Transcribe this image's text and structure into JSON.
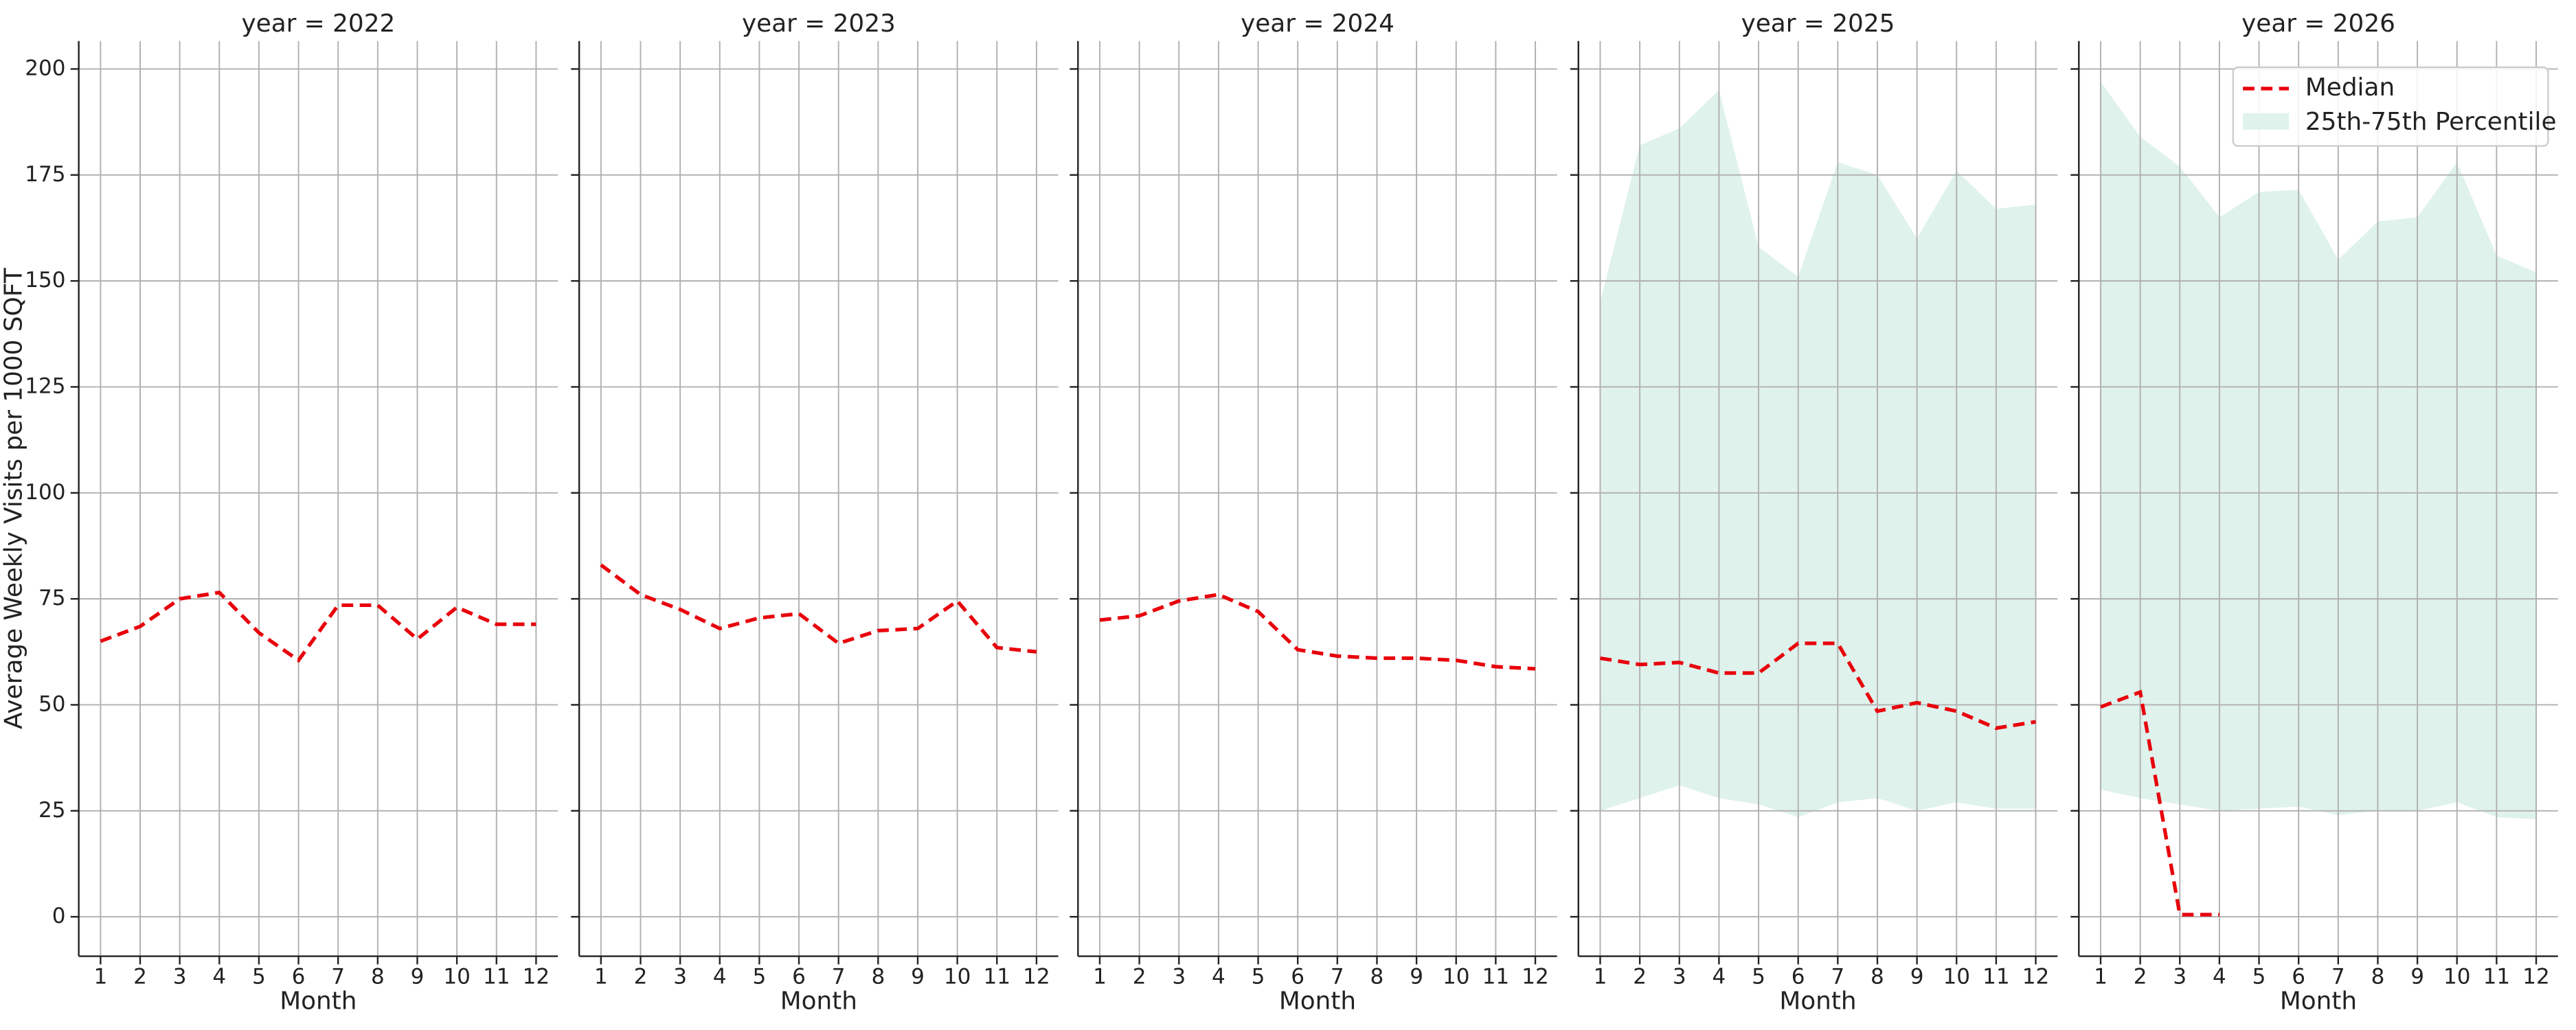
{
  "chart_data": [
    {
      "type": "line",
      "title": "year = 2022",
      "xlabel": "Month",
      "ylabel": "Average Weekly Visits per 1000 SQFT",
      "x": [
        1,
        2,
        3,
        4,
        5,
        6,
        7,
        8,
        9,
        10,
        11,
        12
      ],
      "xlim": [
        0.45,
        12.55
      ],
      "xticks": [
        1,
        2,
        3,
        4,
        5,
        6,
        7,
        8,
        9,
        10,
        11,
        12
      ],
      "ylim": [
        -9.3,
        206.6
      ],
      "yticks": [
        0,
        25,
        50,
        75,
        100,
        125,
        150,
        175,
        200
      ],
      "grid": true,
      "series": [
        {
          "name": "Median",
          "color": "#e8000b",
          "values": [
            65,
            68.5,
            75,
            76.5,
            67,
            60.5,
            73.5,
            73.5,
            65.5,
            73,
            69,
            69
          ]
        }
      ]
    },
    {
      "type": "line",
      "title": "year = 2023",
      "xlabel": "Month",
      "x": [
        1,
        2,
        3,
        4,
        5,
        6,
        7,
        8,
        9,
        10,
        11,
        12
      ],
      "xlim": [
        0.45,
        12.55
      ],
      "xticks": [
        1,
        2,
        3,
        4,
        5,
        6,
        7,
        8,
        9,
        10,
        11,
        12
      ],
      "grid": true,
      "series": [
        {
          "name": "Median",
          "color": "#e8000b",
          "values": [
            83,
            76,
            72.5,
            68,
            70.5,
            71.5,
            64.5,
            67.5,
            68,
            74.5,
            63.5,
            62.5
          ]
        }
      ]
    },
    {
      "type": "line",
      "title": "year = 2024",
      "xlabel": "Month",
      "x": [
        1,
        2,
        3,
        4,
        5,
        6,
        7,
        8,
        9,
        10,
        11,
        12
      ],
      "xlim": [
        0.45,
        12.55
      ],
      "xticks": [
        1,
        2,
        3,
        4,
        5,
        6,
        7,
        8,
        9,
        10,
        11,
        12
      ],
      "grid": true,
      "series": [
        {
          "name": "Median",
          "color": "#e8000b",
          "values": [
            70,
            71,
            74.5,
            76,
            72,
            63,
            61.5,
            61,
            61,
            60.5,
            59,
            58.5
          ]
        }
      ]
    },
    {
      "type": "line",
      "title": "year = 2025",
      "xlabel": "Month",
      "x": [
        1,
        2,
        3,
        4,
        5,
        6,
        7,
        8,
        9,
        10,
        11,
        12
      ],
      "xlim": [
        0.45,
        12.55
      ],
      "xticks": [
        1,
        2,
        3,
        4,
        5,
        6,
        7,
        8,
        9,
        10,
        11,
        12
      ],
      "grid": true,
      "series": [
        {
          "name": "Median",
          "color": "#e8000b",
          "values": [
            61,
            59.5,
            60,
            57.5,
            57.5,
            64.5,
            64.5,
            48.5,
            50.5,
            48.5,
            44.5,
            46
          ]
        }
      ],
      "band": {
        "name": "25th-75th Percentile",
        "color": "#dff2ec",
        "lower": [
          25,
          28,
          31,
          28,
          26.5,
          23.5,
          27,
          28,
          25,
          27,
          25.5,
          25.5
        ],
        "upper": [
          145,
          182,
          186,
          195,
          158,
          151,
          178,
          175,
          160,
          176,
          167,
          168
        ]
      }
    },
    {
      "type": "line",
      "title": "year = 2026",
      "xlabel": "Month",
      "legend": "upper right",
      "x": [
        1,
        2,
        3,
        4,
        5,
        6,
        7,
        8,
        9,
        10,
        11,
        12
      ],
      "xlim": [
        0.45,
        12.55
      ],
      "xticks": [
        1,
        2,
        3,
        4,
        5,
        6,
        7,
        8,
        9,
        10,
        11,
        12
      ],
      "grid": true,
      "series": [
        {
          "name": "Median",
          "color": "#e8000b",
          "values": [
            49.5,
            53,
            0.5,
            0.5,
            null,
            null,
            null,
            null,
            null,
            null,
            null,
            null
          ]
        }
      ],
      "band": {
        "name": "25th-75th Percentile",
        "color": "#dff2ec",
        "lower": [
          30,
          28,
          26.5,
          25,
          25.5,
          26,
          24,
          25,
          25,
          27,
          23.5,
          23
        ],
        "upper": [
          197,
          184,
          177,
          165,
          171,
          171.5,
          155,
          164,
          165,
          178,
          156,
          152
        ]
      }
    }
  ]
}
